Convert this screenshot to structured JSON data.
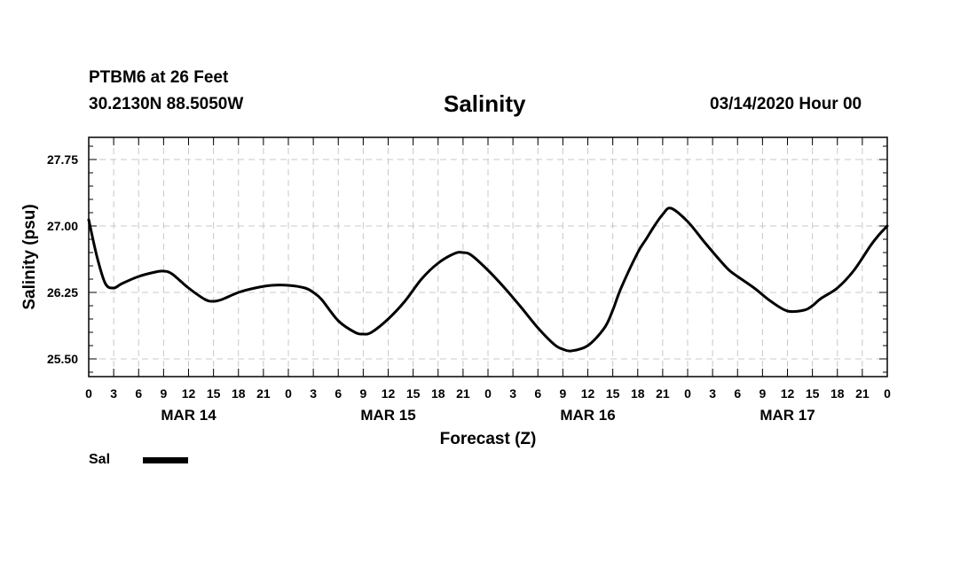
{
  "header": {
    "station": "PTBM6 at 26 Feet",
    "coordinates": "30.2130N 88.5050W",
    "title": "Salinity",
    "datetime": "03/14/2020 Hour 00"
  },
  "legend": {
    "label": "Sal",
    "color": "#000000"
  },
  "chart_data": {
    "type": "line",
    "title": "Salinity",
    "xlabel": "Forecast (Z)",
    "ylabel": "Salinity (psu)",
    "xlim": [
      0,
      96
    ],
    "ylim": [
      25.3,
      28.0
    ],
    "y_ticks": [
      25.5,
      26.25,
      27.0,
      27.75
    ],
    "y_tick_labels": [
      "25.50",
      "26.25",
      "27.00",
      "27.75"
    ],
    "x_ticks": [
      0,
      3,
      6,
      9,
      12,
      15,
      18,
      21,
      24,
      27,
      30,
      33,
      36,
      39,
      42,
      45,
      48,
      51,
      54,
      57,
      60,
      63,
      66,
      69,
      72,
      75,
      78,
      81,
      84,
      87,
      90,
      93,
      96
    ],
    "x_tick_labels": [
      "0",
      "3",
      "6",
      "9",
      "12",
      "15",
      "18",
      "21",
      "0",
      "3",
      "6",
      "9",
      "12",
      "15",
      "18",
      "21",
      "0",
      "3",
      "6",
      "9",
      "12",
      "15",
      "18",
      "21",
      "0",
      "3",
      "6",
      "9",
      "12",
      "15",
      "18",
      "21",
      "0"
    ],
    "day_labels": [
      {
        "hour": 12,
        "label": "MAR 14"
      },
      {
        "hour": 36,
        "label": "MAR 15"
      },
      {
        "hour": 60,
        "label": "MAR 16"
      },
      {
        "hour": 84,
        "label": "MAR 17"
      }
    ],
    "grid": true,
    "series": [
      {
        "name": "Sal",
        "color": "#000000",
        "x": [
          0,
          1,
          2,
          3,
          4,
          6,
          8,
          9,
          10,
          12,
          14,
          15,
          16,
          18,
          20,
          22,
          24,
          26,
          27,
          28,
          30,
          32,
          33,
          34,
          36,
          38,
          40,
          42,
          44,
          45,
          46,
          48,
          50,
          52,
          54,
          56,
          57,
          58,
          60,
          62,
          63,
          64,
          66,
          67,
          68,
          69,
          70,
          72,
          74,
          76,
          77,
          78,
          80,
          82,
          84,
          86,
          87,
          88,
          90,
          92,
          94,
          95,
          96
        ],
        "y": [
          27.07,
          26.65,
          26.35,
          26.3,
          26.35,
          26.43,
          26.48,
          26.49,
          26.46,
          26.3,
          26.17,
          26.15,
          26.17,
          26.25,
          26.3,
          26.33,
          26.33,
          26.3,
          26.25,
          26.17,
          25.93,
          25.8,
          25.78,
          25.8,
          25.95,
          26.15,
          26.4,
          26.58,
          26.69,
          26.7,
          26.67,
          26.5,
          26.3,
          26.08,
          25.85,
          25.66,
          25.61,
          25.59,
          25.65,
          25.85,
          26.05,
          26.3,
          26.7,
          26.85,
          27.0,
          27.13,
          27.2,
          27.05,
          26.82,
          26.6,
          26.5,
          26.43,
          26.3,
          26.15,
          26.04,
          26.05,
          26.1,
          26.18,
          26.3,
          26.5,
          26.78,
          26.9,
          27.0
        ]
      }
    ]
  }
}
